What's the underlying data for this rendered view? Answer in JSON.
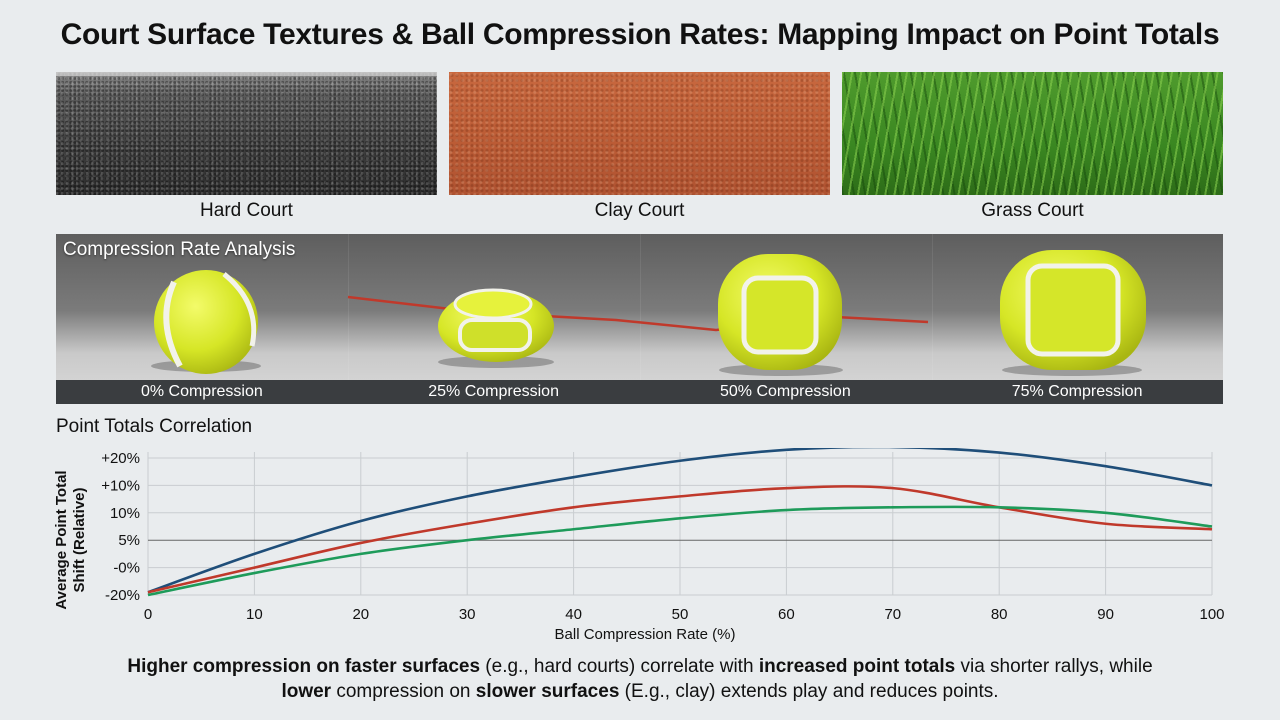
{
  "title": "Court Surface Textures & Ball Compression Rates: Mapping Impact on Point Totals",
  "surfaces": [
    {
      "label": "Hard Court"
    },
    {
      "label": "Clay Court"
    },
    {
      "label": "Grass Court"
    }
  ],
  "compression": {
    "title": "Compression Rate Analysis",
    "labels": [
      "0% Compression",
      "25% Compression",
      "50% Compression",
      "75% Compression"
    ],
    "colors": {
      "ball": "#d8ea2a",
      "seam": "#f2f2ea",
      "trend": "#c0392b"
    }
  },
  "chart_section_title": "Point Totals Correlation",
  "chart_data": {
    "type": "line",
    "xlabel": "Ball Compression Rate (%)",
    "ylabel": "Average Point Total Shift (Relative)",
    "x_ticks": [
      0,
      10,
      20,
      30,
      40,
      50,
      60,
      70,
      80,
      90,
      100
    ],
    "y_tick_labels": [
      "-20%",
      "-0%",
      "5%",
      "10%",
      "+10%",
      "+20%"
    ],
    "xlim": [
      0,
      100
    ],
    "grid": true,
    "x": [
      0,
      10,
      20,
      30,
      40,
      50,
      60,
      70,
      80,
      90,
      100
    ],
    "series": [
      {
        "color": "#1f4e79",
        "values": [
          0.1,
          1.5,
          2.7,
          3.6,
          4.3,
          4.9,
          5.3,
          5.4,
          5.2,
          4.7,
          4.0
        ]
      },
      {
        "color": "#c0392b",
        "values": [
          0.1,
          1.0,
          1.9,
          2.6,
          3.2,
          3.6,
          3.9,
          3.9,
          3.2,
          2.6,
          2.4
        ]
      },
      {
        "color": "#1e9b5a",
        "values": [
          0.0,
          0.8,
          1.5,
          2.0,
          2.4,
          2.8,
          3.1,
          3.2,
          3.2,
          3.0,
          2.5
        ]
      }
    ]
  },
  "caption": {
    "l1_b1": "Higher compression on faster surfaces",
    "l1_t1": " (e.g., hard courts) correlate with ",
    "l1_b2": "increased point totals",
    "l1_t2": " via shorter rallys, while",
    "l2_b1": "lower",
    "l2_t1": " compression on ",
    "l2_b2": "slower surfaces",
    "l2_t2": " (E.g., clay) extends play and reduces points."
  }
}
